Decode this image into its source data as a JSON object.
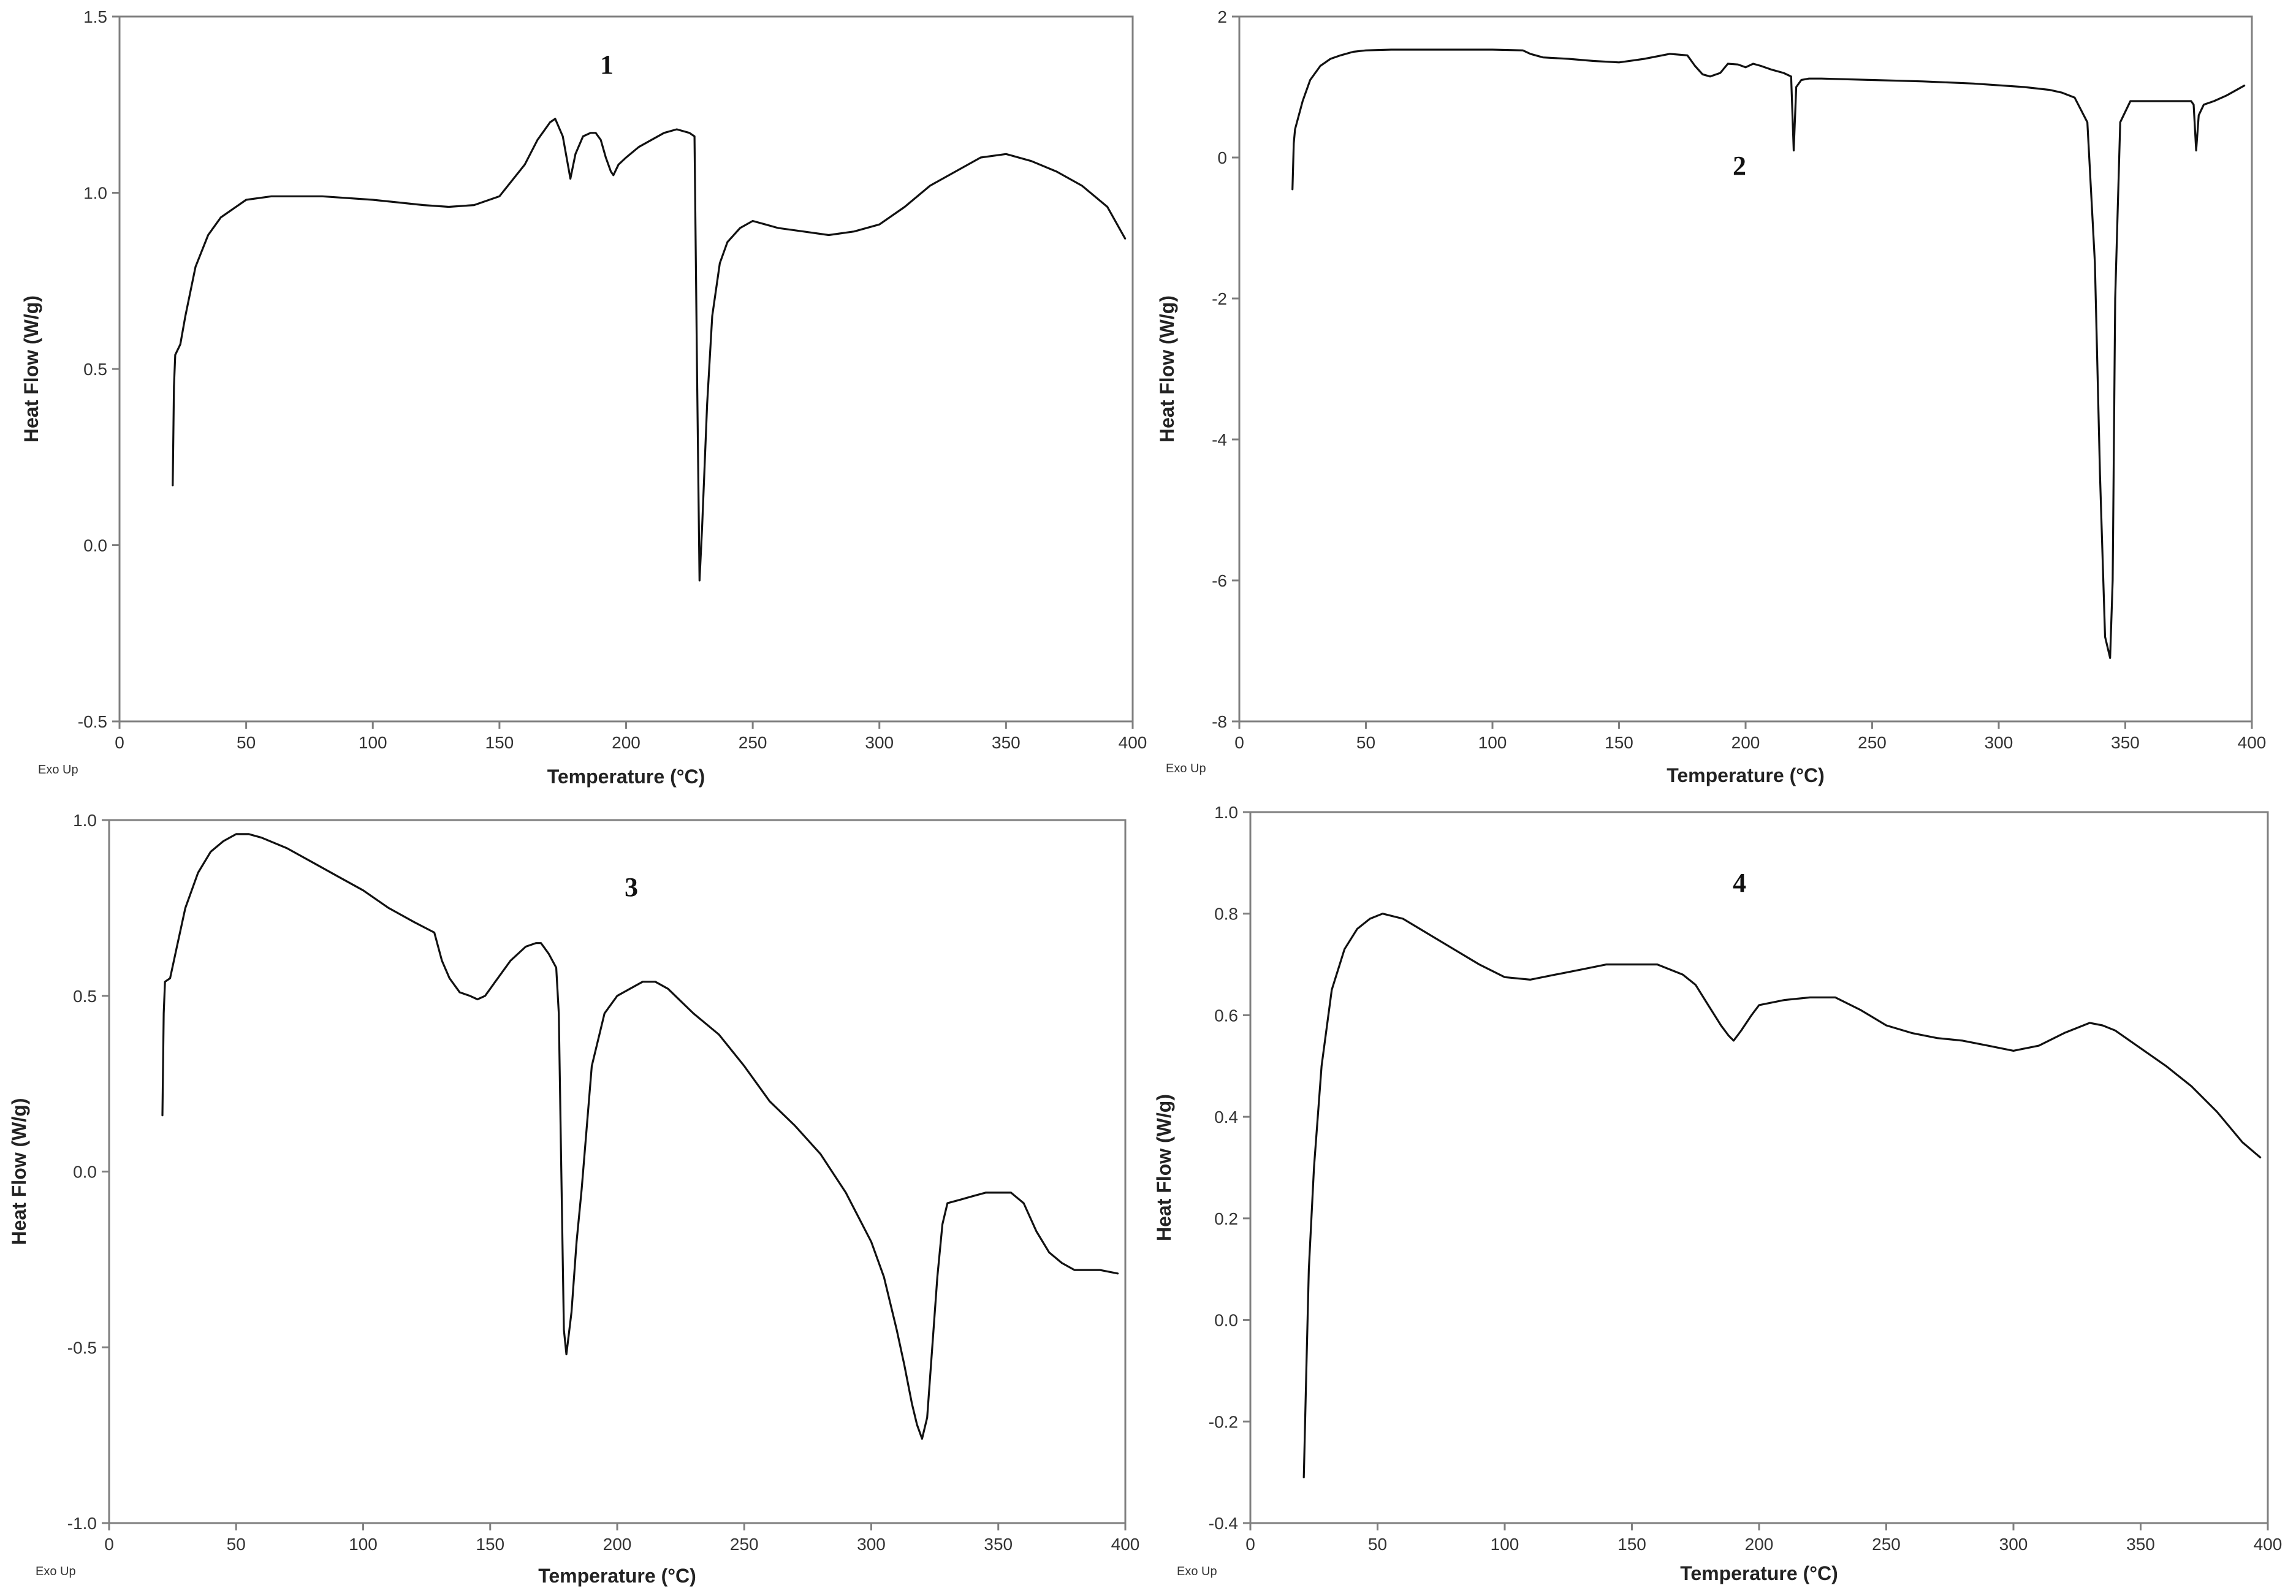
{
  "figure": {
    "panels": [
      {
        "number": "1",
        "exo_label": "Exo Up"
      },
      {
        "number": "2",
        "exo_label": "Exo Up"
      },
      {
        "number": "3",
        "exo_label": "Exo Up"
      },
      {
        "number": "4",
        "exo_label": "Exo Up"
      }
    ]
  },
  "chart_data": [
    {
      "type": "line",
      "title": "1",
      "xlabel": "Temperature (°C)",
      "ylabel": "Heat Flow (W/g)",
      "xlim": [
        0,
        400
      ],
      "ylim": [
        -0.5,
        1.5
      ],
      "xticks": [
        0,
        50,
        100,
        150,
        200,
        250,
        300,
        350,
        400
      ],
      "yticks": [
        -0.5,
        0.0,
        0.5,
        1.0,
        1.5
      ],
      "ytick_labels": [
        "-0.5",
        "0.0",
        "0.5",
        "1.0",
        "1.5"
      ],
      "series": [
        {
          "x": [
            21,
            21.5,
            22,
            24,
            26,
            30,
            35,
            40,
            50,
            60,
            80,
            100,
            120,
            130,
            140,
            150,
            160,
            165,
            170,
            172,
            175,
            177,
            178,
            180,
            183,
            186,
            188,
            190,
            192,
            194,
            195,
            197,
            200,
            205,
            210,
            215,
            220,
            225,
            227,
            228,
            229,
            230,
            232,
            234,
            237,
            240,
            245,
            250,
            255,
            260,
            270,
            280,
            290,
            300,
            310,
            320,
            330,
            340,
            350,
            360,
            370,
            380,
            390,
            397
          ],
          "y": [
            0.17,
            0.45,
            0.54,
            0.57,
            0.65,
            0.79,
            0.88,
            0.93,
            0.98,
            0.99,
            0.99,
            0.98,
            0.965,
            0.96,
            0.965,
            0.99,
            1.08,
            1.15,
            1.2,
            1.21,
            1.16,
            1.08,
            1.04,
            1.11,
            1.16,
            1.17,
            1.17,
            1.15,
            1.1,
            1.06,
            1.05,
            1.08,
            1.1,
            1.13,
            1.15,
            1.17,
            1.18,
            1.17,
            1.16,
            0.5,
            -0.1,
            0.05,
            0.4,
            0.65,
            0.8,
            0.86,
            0.9,
            0.92,
            0.91,
            0.9,
            0.89,
            0.88,
            0.89,
            0.91,
            0.96,
            1.02,
            1.06,
            1.1,
            1.11,
            1.09,
            1.06,
            1.02,
            0.96,
            0.87
          ]
        }
      ]
    },
    {
      "type": "line",
      "title": "2",
      "xlabel": "Temperature (°C)",
      "ylabel": "Heat Flow (W/g)",
      "xlim": [
        0,
        400
      ],
      "ylim": [
        -8,
        2
      ],
      "xticks": [
        0,
        50,
        100,
        150,
        200,
        250,
        300,
        350,
        400
      ],
      "yticks": [
        -8,
        -6,
        -4,
        -2,
        0,
        2
      ],
      "ytick_labels": [
        "-8",
        "-6",
        "-4",
        "-2",
        "0",
        "2"
      ],
      "series": [
        {
          "x": [
            21,
            21.5,
            22,
            25,
            28,
            32,
            36,
            40,
            45,
            50,
            60,
            80,
            100,
            112,
            115,
            120,
            130,
            140,
            150,
            160,
            170,
            177,
            180,
            183,
            186,
            190,
            193,
            197,
            200,
            203,
            206,
            210,
            215,
            218,
            219,
            220,
            222,
            225,
            230,
            250,
            270,
            290,
            310,
            320,
            325,
            330,
            335,
            338,
            340,
            342,
            344,
            345,
            346,
            348,
            352,
            360,
            370,
            376,
            377,
            378,
            379,
            381,
            385,
            390,
            397
          ],
          "y": [
            -0.45,
            0.2,
            0.4,
            0.8,
            1.1,
            1.3,
            1.4,
            1.45,
            1.5,
            1.52,
            1.53,
            1.53,
            1.53,
            1.52,
            1.47,
            1.42,
            1.4,
            1.37,
            1.35,
            1.4,
            1.47,
            1.45,
            1.3,
            1.18,
            1.15,
            1.2,
            1.33,
            1.32,
            1.28,
            1.33,
            1.3,
            1.25,
            1.2,
            1.15,
            0.1,
            1.0,
            1.1,
            1.12,
            1.12,
            1.1,
            1.08,
            1.05,
            1.0,
            0.96,
            0.92,
            0.85,
            0.5,
            -1.5,
            -4.5,
            -6.8,
            -7.1,
            -6.0,
            -2.0,
            0.5,
            0.8,
            0.8,
            0.8,
            0.8,
            0.75,
            0.1,
            0.6,
            0.75,
            0.8,
            0.88,
            1.02
          ]
        }
      ]
    },
    {
      "type": "line",
      "title": "3",
      "xlabel": "Temperature (°C)",
      "ylabel": "Heat Flow (W/g)",
      "xlim": [
        0,
        400
      ],
      "ylim": [
        -1.0,
        1.0
      ],
      "xticks": [
        0,
        50,
        100,
        150,
        200,
        250,
        300,
        350,
        400
      ],
      "yticks": [
        -1.0,
        -0.5,
        0.0,
        0.5,
        1.0
      ],
      "ytick_labels": [
        "-1.0",
        "-0.5",
        "0.0",
        "0.5",
        "1.0"
      ],
      "series": [
        {
          "x": [
            21,
            21.5,
            22,
            24,
            27,
            30,
            35,
            40,
            45,
            50,
            55,
            60,
            70,
            80,
            90,
            100,
            110,
            120,
            128,
            131,
            134,
            138,
            142,
            145,
            148,
            152,
            158,
            164,
            168,
            170,
            173,
            176,
            177,
            178,
            179,
            180,
            182,
            184,
            186,
            190,
            195,
            200,
            205,
            210,
            215,
            220,
            230,
            240,
            250,
            260,
            270,
            280,
            290,
            300,
            305,
            310,
            313,
            316,
            318,
            320,
            322,
            324,
            326,
            328,
            330,
            335,
            340,
            345,
            350,
            355,
            360,
            365,
            370,
            375,
            380,
            390,
            397
          ],
          "y": [
            0.16,
            0.45,
            0.54,
            0.55,
            0.65,
            0.75,
            0.85,
            0.91,
            0.94,
            0.96,
            0.96,
            0.95,
            0.92,
            0.88,
            0.84,
            0.8,
            0.75,
            0.71,
            0.68,
            0.6,
            0.55,
            0.51,
            0.5,
            0.49,
            0.5,
            0.54,
            0.6,
            0.64,
            0.65,
            0.65,
            0.62,
            0.58,
            0.45,
            0.0,
            -0.45,
            -0.52,
            -0.4,
            -0.2,
            -0.05,
            0.3,
            0.45,
            0.5,
            0.52,
            0.54,
            0.54,
            0.52,
            0.45,
            0.39,
            0.3,
            0.2,
            0.13,
            0.05,
            -0.06,
            -0.2,
            -0.3,
            -0.45,
            -0.55,
            -0.66,
            -0.72,
            -0.76,
            -0.7,
            -0.5,
            -0.3,
            -0.15,
            -0.09,
            -0.08,
            -0.07,
            -0.06,
            -0.06,
            -0.06,
            -0.09,
            -0.17,
            -0.23,
            -0.26,
            -0.28,
            -0.28,
            -0.29
          ]
        }
      ]
    },
    {
      "type": "line",
      "title": "4",
      "xlabel": "Temperature (°C)",
      "ylabel": "Heat Flow (W/g)",
      "xlim": [
        0,
        400
      ],
      "ylim": [
        -0.4,
        1.0
      ],
      "xticks": [
        0,
        50,
        100,
        150,
        200,
        250,
        300,
        350,
        400
      ],
      "yticks": [
        -0.4,
        -0.2,
        0.0,
        0.2,
        0.4,
        0.6,
        0.8,
        1.0
      ],
      "ytick_labels": [
        "-0.4",
        "-0.2",
        "0.0",
        "0.2",
        "0.4",
        "0.6",
        "0.8",
        "1.0"
      ],
      "series": [
        {
          "x": [
            21,
            22,
            23,
            25,
            28,
            32,
            37,
            42,
            47,
            52,
            60,
            70,
            80,
            90,
            100,
            110,
            120,
            130,
            140,
            150,
            160,
            170,
            175,
            180,
            185,
            188,
            190,
            193,
            197,
            200,
            210,
            220,
            230,
            240,
            250,
            260,
            270,
            280,
            290,
            300,
            310,
            320,
            325,
            330,
            335,
            340,
            350,
            360,
            370,
            380,
            390,
            397
          ],
          "y": [
            -0.31,
            -0.1,
            0.1,
            0.3,
            0.5,
            0.65,
            0.73,
            0.77,
            0.79,
            0.8,
            0.79,
            0.76,
            0.73,
            0.7,
            0.675,
            0.67,
            0.68,
            0.69,
            0.7,
            0.7,
            0.7,
            0.68,
            0.66,
            0.62,
            0.58,
            0.56,
            0.55,
            0.57,
            0.6,
            0.62,
            0.63,
            0.635,
            0.635,
            0.61,
            0.58,
            0.565,
            0.555,
            0.55,
            0.54,
            0.53,
            0.54,
            0.565,
            0.575,
            0.585,
            0.58,
            0.57,
            0.535,
            0.5,
            0.46,
            0.41,
            0.35,
            0.32
          ]
        }
      ]
    }
  ]
}
